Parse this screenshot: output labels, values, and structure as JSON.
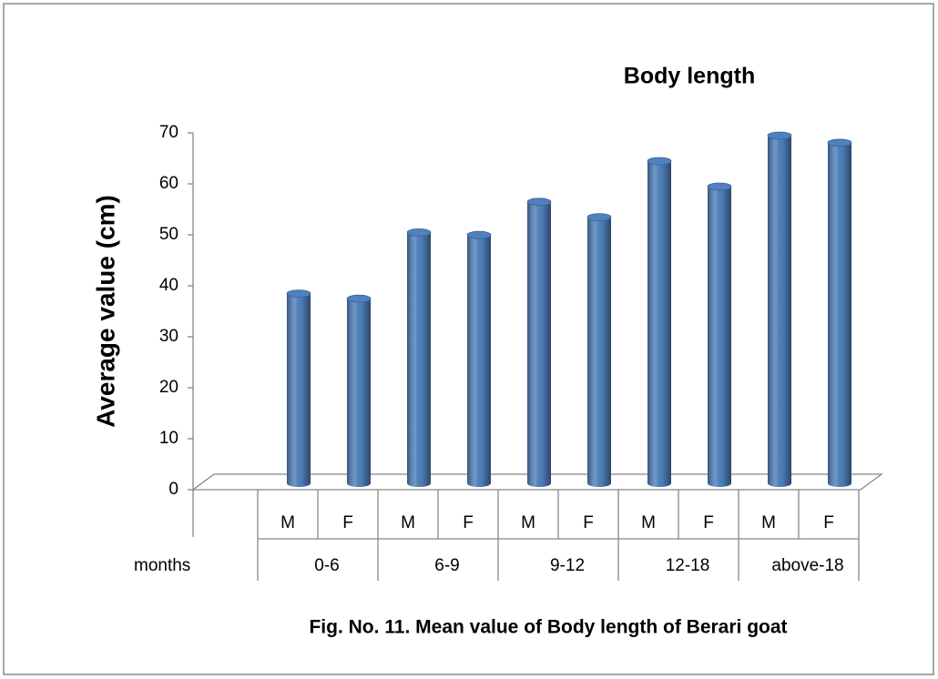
{
  "chart_data": {
    "type": "bar",
    "title": "Body length",
    "y_label": "Average value (cm)",
    "x_label": "months",
    "caption": "Fig. No. 11. Mean value of Body length of Berari goat",
    "categories": [
      "M",
      "F",
      "M",
      "F",
      "M",
      "F",
      "M",
      "F",
      "M",
      "F"
    ],
    "groups": [
      "0-6",
      "6-9",
      "9-12",
      "12-18",
      "above-18"
    ],
    "values": [
      39,
      38,
      51,
      50.5,
      57,
      54,
      65,
      60,
      70,
      68.6
    ],
    "color": "#4f81bd",
    "ylim": [
      0,
      70
    ],
    "yticks": [
      0,
      10,
      20,
      30,
      40,
      50,
      60,
      70
    ],
    "grid": false
  }
}
